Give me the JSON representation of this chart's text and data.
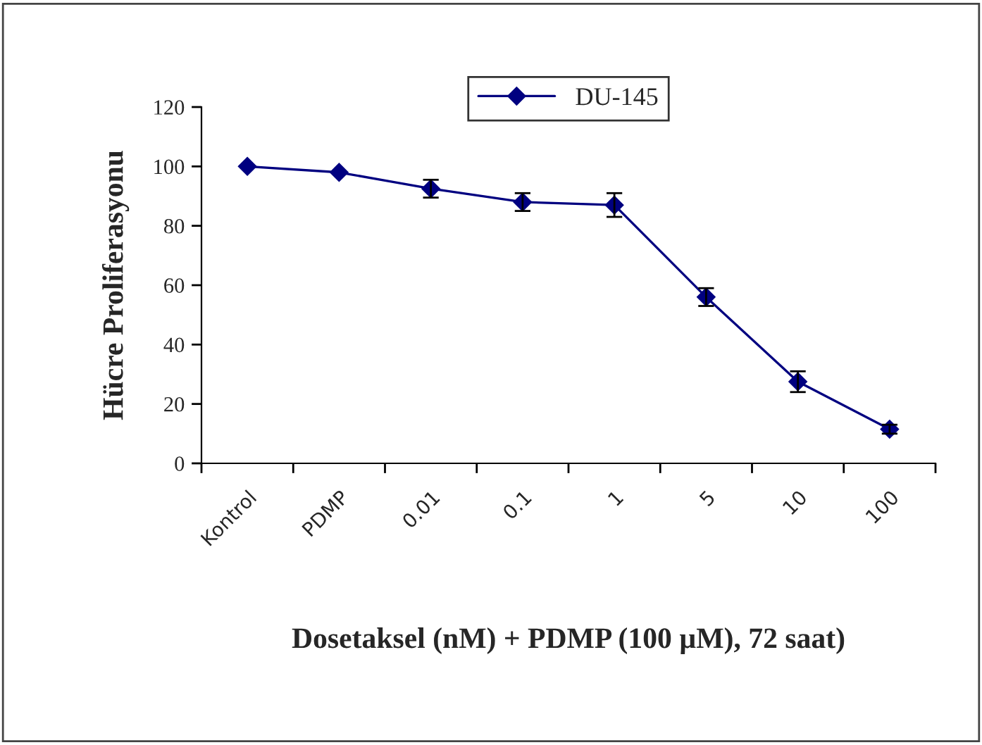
{
  "chart_data": {
    "type": "line",
    "xlabel": "Dosetaksel (nM) + PDMP (100 µM), 72 saat)",
    "ylabel": "Hücre Proliferasyonu",
    "categories": [
      "Kontrol",
      "PDMP",
      "0.01",
      "0.1",
      "1",
      "5",
      "10",
      "100"
    ],
    "series": [
      {
        "name": "DU-145",
        "color": "#000080",
        "values": [
          100,
          98,
          92.5,
          88,
          87,
          56,
          27.5,
          11.5
        ],
        "errors": [
          null,
          null,
          3,
          3,
          4,
          3,
          3.5,
          1.5
        ]
      }
    ],
    "ylim": [
      0,
      120
    ],
    "yticks": [
      0,
      20,
      40,
      60,
      80,
      100,
      120
    ],
    "grid": false,
    "legend": "top",
    "marker": "diamond",
    "line_style": "solid"
  }
}
